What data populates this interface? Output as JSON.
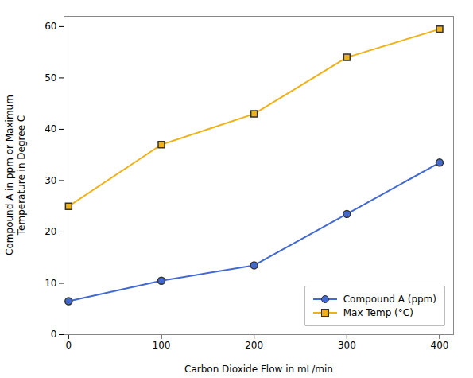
{
  "chart_data": {
    "type": "line",
    "x": [
      0,
      100,
      200,
      300,
      400
    ],
    "series": [
      {
        "name": "Compound A (ppm)",
        "values": [
          6.5,
          10.5,
          13.5,
          23.5,
          33.5
        ],
        "marker": "circle"
      },
      {
        "name": "Max Temp (°C)",
        "values": [
          25,
          37,
          43,
          54,
          59.5
        ],
        "marker": "square"
      }
    ],
    "xlabel": "Carbon Dioxide Flow in mL/min",
    "ylabel": "Compound A in ppm or Maximum\nTemperature in Degree C",
    "xlim": [
      -5,
      415
    ],
    "ylim": [
      0,
      62
    ],
    "xticks": [
      0,
      100,
      200,
      300,
      400
    ],
    "yticks": [
      0,
      10,
      20,
      30,
      40,
      50,
      60
    ],
    "grid": false,
    "legend": "lower right"
  }
}
